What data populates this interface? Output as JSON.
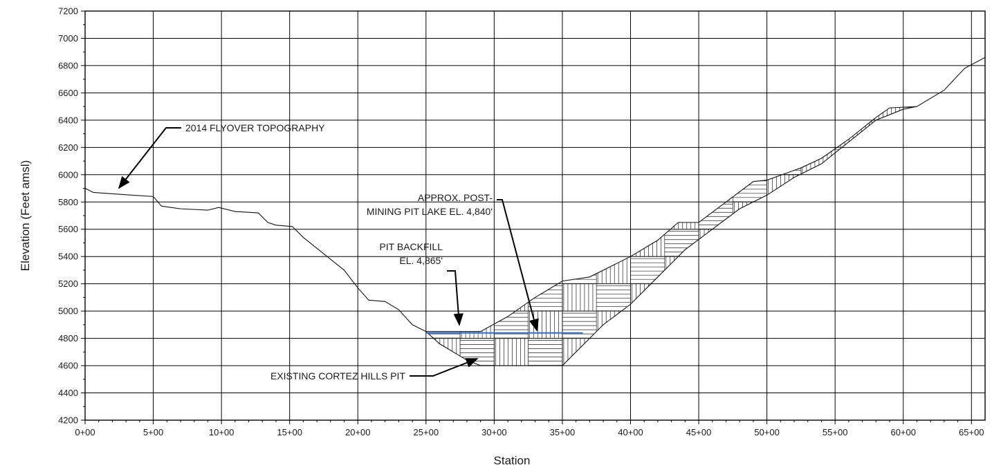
{
  "chart_data": {
    "type": "line",
    "title": "",
    "xlabel": "Station",
    "ylabel": "Elevation  (Feet amsl)",
    "xlim": [
      0,
      6600
    ],
    "ylim": [
      4200,
      7200
    ],
    "x_ticks": [
      {
        "value": 0,
        "label": "0+00"
      },
      {
        "value": 500,
        "label": "5+00"
      },
      {
        "value": 1000,
        "label": "10+00"
      },
      {
        "value": 1500,
        "label": "15+00"
      },
      {
        "value": 2000,
        "label": "20+00"
      },
      {
        "value": 2500,
        "label": "25+00"
      },
      {
        "value": 3000,
        "label": "30+00"
      },
      {
        "value": 3500,
        "label": "35+00"
      },
      {
        "value": 4000,
        "label": "40+00"
      },
      {
        "value": 4500,
        "label": "45+00"
      },
      {
        "value": 5000,
        "label": "50+00"
      },
      {
        "value": 5500,
        "label": "55+00"
      },
      {
        "value": 6000,
        "label": "60+00"
      },
      {
        "value": 6500,
        "label": "65+00"
      }
    ],
    "y_ticks": [
      4200,
      4400,
      4600,
      4800,
      5000,
      5200,
      5400,
      5600,
      5800,
      6000,
      6200,
      6400,
      6600,
      6800,
      7000,
      7200
    ],
    "grid": true,
    "colors": {
      "topography": "#111111",
      "water_line": "#2f6fd0",
      "grid": "#000000"
    },
    "series": [
      {
        "key": "topography",
        "points": [
          [
            0,
            5900
          ],
          [
            60,
            5870
          ],
          [
            200,
            5860
          ],
          [
            350,
            5850
          ],
          [
            500,
            5840
          ],
          [
            560,
            5770
          ],
          [
            700,
            5750
          ],
          [
            900,
            5740
          ],
          [
            980,
            5760
          ],
          [
            1100,
            5730
          ],
          [
            1270,
            5720
          ],
          [
            1340,
            5650
          ],
          [
            1400,
            5630
          ],
          [
            1520,
            5620
          ],
          [
            1600,
            5540
          ],
          [
            1700,
            5460
          ],
          [
            1800,
            5380
          ],
          [
            1900,
            5300
          ],
          [
            2000,
            5170
          ],
          [
            2080,
            5080
          ],
          [
            2200,
            5070
          ],
          [
            2300,
            5010
          ],
          [
            2400,
            4900
          ],
          [
            2500,
            4850
          ],
          [
            2900,
            4850
          ],
          [
            3100,
            4960
          ],
          [
            3300,
            5100
          ],
          [
            3500,
            5220
          ],
          [
            3700,
            5250
          ],
          [
            3900,
            5350
          ],
          [
            4000,
            5400
          ],
          [
            4200,
            5520
          ],
          [
            4350,
            5650
          ],
          [
            4500,
            5650
          ],
          [
            4700,
            5800
          ],
          [
            4900,
            5950
          ],
          [
            5000,
            5960
          ],
          [
            5250,
            6050
          ],
          [
            5400,
            6120
          ],
          [
            5600,
            6260
          ],
          [
            5800,
            6420
          ],
          [
            5900,
            6490
          ],
          [
            6100,
            6500
          ],
          [
            6300,
            6620
          ],
          [
            6450,
            6780
          ],
          [
            6600,
            6860
          ]
        ]
      },
      {
        "key": "pit_bottom",
        "points": [
          [
            2500,
            4850
          ],
          [
            2600,
            4760
          ],
          [
            2700,
            4700
          ],
          [
            2800,
            4640
          ],
          [
            2900,
            4600
          ],
          [
            3000,
            4600
          ],
          [
            3250,
            4600
          ],
          [
            3500,
            4600
          ],
          [
            3550,
            4650
          ],
          [
            3650,
            4750
          ],
          [
            3800,
            4900
          ],
          [
            4000,
            5050
          ],
          [
            4200,
            5250
          ],
          [
            4400,
            5450
          ],
          [
            4600,
            5600
          ],
          [
            4800,
            5750
          ],
          [
            5000,
            5850
          ],
          [
            5200,
            5980
          ],
          [
            5400,
            6080
          ],
          [
            5600,
            6240
          ],
          [
            5800,
            6400
          ],
          [
            6000,
            6480
          ],
          [
            6100,
            6500
          ]
        ]
      },
      {
        "key": "pit_lake",
        "points": [
          [
            2500,
            4840
          ],
          [
            3650,
            4840
          ]
        ]
      }
    ],
    "annotations": [
      {
        "key": "topo",
        "lines": [
          "2014 FLYOVER TOPOGRAPHY"
        ]
      },
      {
        "key": "lake",
        "lines": [
          "APPROX. POST-",
          "MINING PIT LAKE EL. 4,840'"
        ]
      },
      {
        "key": "backfill",
        "lines": [
          "PIT BACKFILL",
          "EL. 4,865'"
        ]
      },
      {
        "key": "pit",
        "lines": [
          "EXISTING CORTEZ HILLS PIT"
        ]
      }
    ]
  }
}
